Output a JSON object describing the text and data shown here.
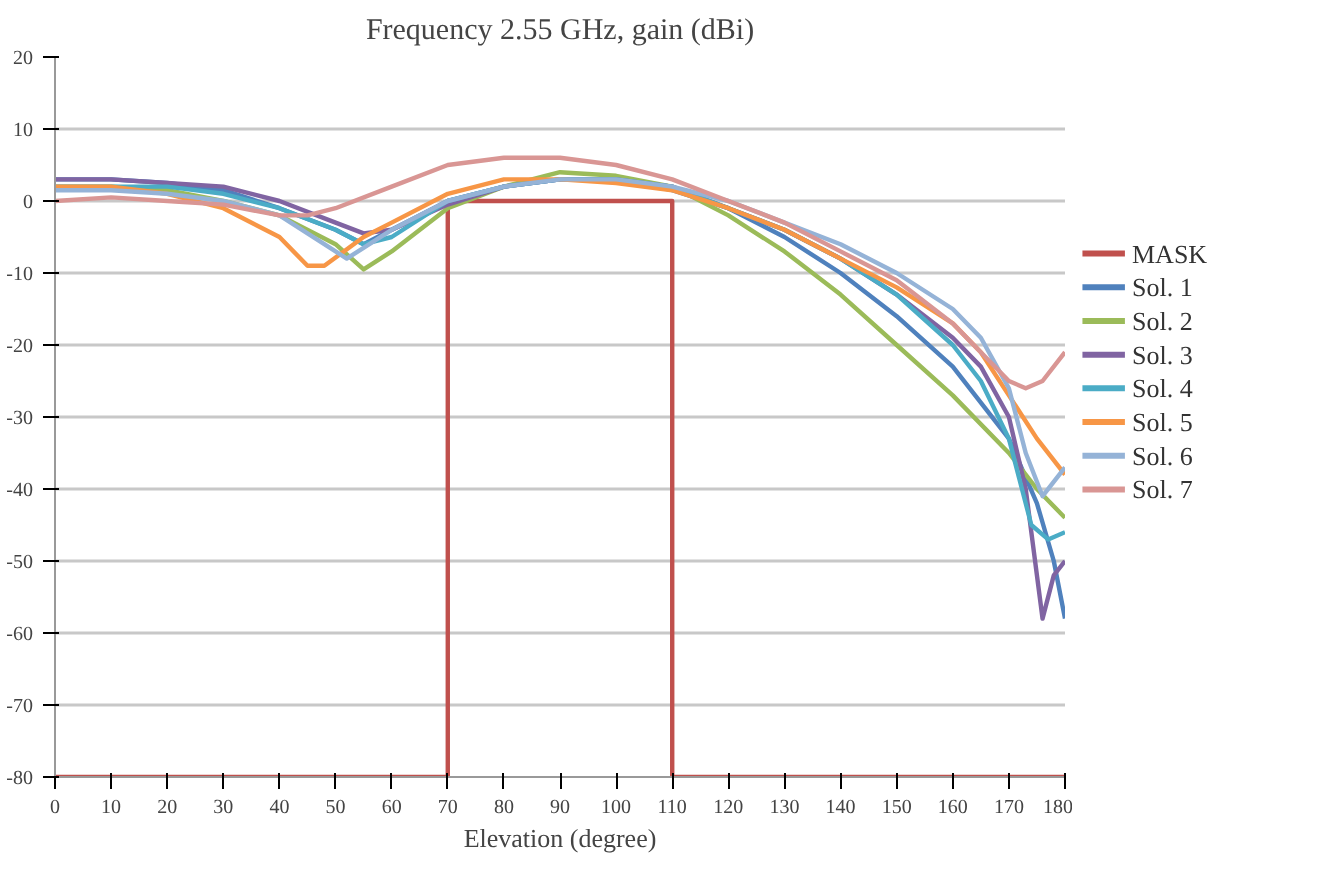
{
  "chart_data": {
    "type": "line",
    "title": "Frequency 2.55 GHz, gain (dBi)",
    "xlabel": "Elevation (degree)",
    "xlim": [
      0,
      180
    ],
    "xticks": [
      0,
      10,
      20,
      30,
      40,
      50,
      60,
      70,
      80,
      90,
      100,
      110,
      120,
      130,
      140,
      150,
      160,
      170,
      180
    ],
    "ylim": [
      -80,
      20
    ],
    "yticks": [
      -80,
      -70,
      -60,
      -50,
      -40,
      -30,
      -20,
      -10,
      0,
      10,
      20
    ],
    "grid": "y",
    "legend": "right",
    "line_style": "solid",
    "marker": "none",
    "series": [
      {
        "name": "MASK",
        "color": "#c0504d",
        "x": [
          0,
          70,
          70,
          110,
          110,
          180
        ],
        "values": [
          -80,
          -80,
          0,
          0,
          -80,
          -80
        ]
      },
      {
        "name": "Sol. 1",
        "color": "#4f81bd",
        "x": [
          0,
          10,
          20,
          30,
          40,
          50,
          55,
          60,
          70,
          80,
          90,
          100,
          110,
          120,
          130,
          140,
          150,
          160,
          170,
          175,
          178,
          180
        ],
        "values": [
          3,
          3,
          2.5,
          1.5,
          -1,
          -4,
          -6,
          -4,
          0,
          2,
          3,
          3,
          1.5,
          -1,
          -5,
          -10,
          -16,
          -23,
          -33,
          -42,
          -50,
          -58
        ]
      },
      {
        "name": "Sol. 2",
        "color": "#9bbb59",
        "x": [
          0,
          10,
          20,
          30,
          40,
          50,
          55,
          60,
          70,
          80,
          90,
          100,
          110,
          120,
          130,
          140,
          150,
          160,
          170,
          175,
          180
        ],
        "values": [
          2,
          2,
          1.5,
          0,
          -2,
          -6,
          -9.5,
          -7,
          -1,
          2,
          4,
          3.5,
          2,
          -2,
          -7,
          -13,
          -20,
          -27,
          -35,
          -40,
          -44
        ]
      },
      {
        "name": "Sol. 3",
        "color": "#8064a2",
        "x": [
          0,
          10,
          20,
          30,
          40,
          50,
          55,
          60,
          70,
          80,
          90,
          100,
          110,
          120,
          130,
          140,
          150,
          160,
          165,
          170,
          173,
          176,
          178,
          180
        ],
        "values": [
          3,
          3,
          2.5,
          2,
          0,
          -3,
          -4.5,
          -4,
          -0.5,
          2,
          3,
          3,
          2,
          -1,
          -4,
          -8,
          -13,
          -19,
          -23,
          -30,
          -40,
          -58,
          -52,
          -50
        ]
      },
      {
        "name": "Sol. 4",
        "color": "#4bacc6",
        "x": [
          0,
          10,
          20,
          30,
          40,
          50,
          55,
          60,
          70,
          80,
          90,
          100,
          110,
          120,
          130,
          140,
          150,
          160,
          165,
          170,
          174,
          177,
          180
        ],
        "values": [
          2,
          2,
          2,
          1,
          -1,
          -4,
          -6,
          -5,
          0,
          2,
          3,
          3,
          2,
          -1,
          -4,
          -8,
          -13,
          -20,
          -25,
          -33,
          -45,
          -47,
          -46
        ]
      },
      {
        "name": "Sol. 5",
        "color": "#f79646",
        "x": [
          0,
          10,
          20,
          30,
          40,
          45,
          48,
          55,
          60,
          70,
          80,
          90,
          100,
          110,
          120,
          130,
          140,
          150,
          160,
          165,
          170,
          175,
          180
        ],
        "values": [
          2,
          2,
          1,
          -1,
          -5,
          -9,
          -9,
          -5,
          -3,
          1,
          3,
          3,
          2.5,
          1.5,
          -1,
          -4,
          -8,
          -12,
          -17,
          -21,
          -27,
          -33,
          -38
        ]
      },
      {
        "name": "Sol. 6",
        "color": "#95b3d7",
        "x": [
          0,
          10,
          20,
          30,
          40,
          50,
          52,
          60,
          70,
          80,
          90,
          100,
          110,
          120,
          130,
          140,
          150,
          160,
          165,
          170,
          173,
          176,
          180
        ],
        "values": [
          1.5,
          1.5,
          1,
          0,
          -2,
          -7,
          -8,
          -4,
          0,
          2,
          3,
          3,
          2,
          0,
          -3,
          -6,
          -10,
          -15,
          -19,
          -26,
          -35,
          -41,
          -37
        ]
      },
      {
        "name": "Sol. 7",
        "color": "#d99694",
        "x": [
          0,
          10,
          20,
          30,
          40,
          45,
          50,
          60,
          70,
          80,
          90,
          100,
          110,
          120,
          130,
          140,
          150,
          160,
          165,
          170,
          173,
          176,
          180
        ],
        "values": [
          0,
          0.5,
          0,
          -0.5,
          -2,
          -2,
          -1,
          2,
          5,
          6,
          6,
          5,
          3,
          0,
          -3,
          -7,
          -11,
          -17,
          -21,
          -25,
          -26,
          -25,
          -21
        ]
      }
    ]
  }
}
